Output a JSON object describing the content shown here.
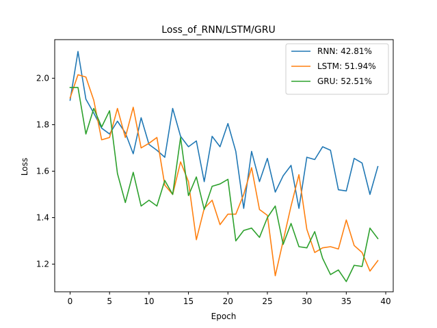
{
  "chart_data": {
    "type": "line",
    "title": "Loss_of_RNN/LSTM/GRU",
    "xlabel": "Epoch",
    "ylabel": "Loss",
    "xlim": [
      -1.95,
      40.95
    ],
    "ylim": [
      1.081,
      2.166
    ],
    "xticks": [
      0,
      5,
      10,
      15,
      20,
      25,
      30,
      35,
      40
    ],
    "yticks": [
      1.2,
      1.4,
      1.6,
      1.8,
      2.0
    ],
    "xtick_labels": [
      "0",
      "5",
      "10",
      "15",
      "20",
      "25",
      "30",
      "35",
      "40"
    ],
    "ytick_labels": [
      "1.2",
      "1.4",
      "1.6",
      "1.8",
      "2.0"
    ],
    "grid": false,
    "legend_position": "top-right",
    "x": [
      0,
      1,
      2,
      3,
      4,
      5,
      6,
      7,
      8,
      9,
      10,
      11,
      12,
      13,
      14,
      15,
      16,
      17,
      18,
      19,
      20,
      21,
      22,
      23,
      24,
      25,
      26,
      27,
      28,
      29,
      30,
      31,
      32,
      33,
      34,
      35,
      36,
      37,
      38,
      39
    ],
    "series": [
      {
        "name": "RNN: 42.81%",
        "color": "#1f77b4",
        "values": [
          1.905,
          2.115,
          1.91,
          1.85,
          1.785,
          1.76,
          1.815,
          1.765,
          1.675,
          1.83,
          1.715,
          1.69,
          1.66,
          1.87,
          1.75,
          1.705,
          1.73,
          1.555,
          1.75,
          1.705,
          1.805,
          1.685,
          1.44,
          1.685,
          1.555,
          1.655,
          1.51,
          1.58,
          1.625,
          1.44,
          1.66,
          1.65,
          1.705,
          1.69,
          1.52,
          1.515,
          1.655,
          1.635,
          1.5,
          1.62
        ]
      },
      {
        "name": "LSTM: 51.94%",
        "color": "#ff7f0e",
        "values": [
          1.915,
          2.015,
          2.005,
          1.905,
          1.735,
          1.745,
          1.87,
          1.745,
          1.875,
          1.7,
          1.72,
          1.745,
          1.54,
          1.5,
          1.64,
          1.555,
          1.305,
          1.44,
          1.475,
          1.37,
          1.415,
          1.415,
          1.5,
          1.615,
          1.435,
          1.41,
          1.15,
          1.3,
          1.45,
          1.585,
          1.35,
          1.25,
          1.27,
          1.275,
          1.265,
          1.39,
          1.28,
          1.25,
          1.17,
          1.215
        ]
      },
      {
        "name": "GRU: 52.51%",
        "color": "#2ca02c",
        "values": [
          1.96,
          1.96,
          1.76,
          1.87,
          1.79,
          1.86,
          1.59,
          1.465,
          1.595,
          1.45,
          1.475,
          1.45,
          1.56,
          1.5,
          1.745,
          1.495,
          1.575,
          1.435,
          1.535,
          1.545,
          1.565,
          1.3,
          1.345,
          1.355,
          1.315,
          1.4,
          1.45,
          1.285,
          1.375,
          1.275,
          1.27,
          1.34,
          1.225,
          1.155,
          1.175,
          1.125,
          1.195,
          1.19,
          1.355,
          1.31
        ]
      }
    ]
  }
}
